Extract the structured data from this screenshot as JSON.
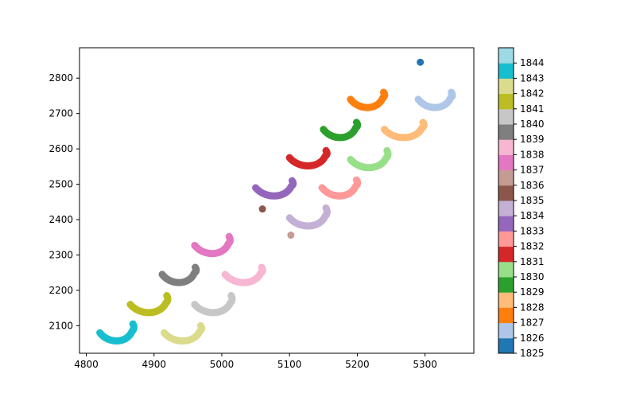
{
  "chart_data": {
    "type": "scatter",
    "title": "",
    "xlabel": "",
    "ylabel": "",
    "xlim": [
      4790,
      5372
    ],
    "ylim": [
      2022,
      2886
    ],
    "xticks": [
      4800,
      4900,
      5000,
      5100,
      5200,
      5300
    ],
    "yticks": [
      2100,
      2200,
      2300,
      2400,
      2500,
      2600,
      2700,
      2800
    ],
    "grid": false,
    "colormap": "tab20",
    "colorbar": {
      "min": 1825,
      "max": 1845,
      "tick_labels": [
        "1825",
        "1826",
        "1827",
        "1828",
        "1829",
        "1830",
        "1831",
        "1832",
        "1833",
        "1834",
        "1835",
        "1836",
        "1837",
        "1838",
        "1839",
        "1840",
        "1841",
        "1842",
        "1843",
        "1844"
      ],
      "colors": [
        "#1f77b4",
        "#aec7e8",
        "#ff7f0e",
        "#ffbb78",
        "#2ca02c",
        "#98df8a",
        "#d62728",
        "#ff9896",
        "#9467bd",
        "#c5b0d5",
        "#8c564b",
        "#c49c94",
        "#e377c2",
        "#f7b6d2",
        "#7f7f7f",
        "#c7c7c7",
        "#bcbd22",
        "#dbdb8d",
        "#17becf",
        "#9edae5"
      ]
    },
    "series": [
      {
        "year": 1825,
        "shape": "dot",
        "cx": 5293,
        "cy": 2845
      },
      {
        "year": 1826,
        "shape": "arc",
        "x_start": 5290,
        "x_end": 5340,
        "y_start": 2740,
        "y_end": 2760
      },
      {
        "year": 1827,
        "shape": "arc",
        "x_start": 5190,
        "x_end": 5240,
        "y_start": 2740,
        "y_end": 2760
      },
      {
        "year": 1828,
        "shape": "arc",
        "x_start": 5240,
        "x_end": 5298,
        "y_start": 2655,
        "y_end": 2675
      },
      {
        "year": 1829,
        "shape": "arc",
        "x_start": 5150,
        "x_end": 5200,
        "y_start": 2655,
        "y_end": 2675
      },
      {
        "year": 1830,
        "shape": "arc",
        "x_start": 5190,
        "x_end": 5245,
        "y_start": 2570,
        "y_end": 2595
      },
      {
        "year": 1831,
        "shape": "arc",
        "x_start": 5100,
        "x_end": 5155,
        "y_start": 2575,
        "y_end": 2595
      },
      {
        "year": 1832,
        "shape": "arc",
        "x_start": 5148,
        "x_end": 5200,
        "y_start": 2490,
        "y_end": 2512
      },
      {
        "year": 1833,
        "shape": "arc",
        "x_start": 5050,
        "x_end": 5105,
        "y_start": 2490,
        "y_end": 2510
      },
      {
        "year": 1834,
        "shape": "arc",
        "x_start": 5100,
        "x_end": 5155,
        "y_start": 2405,
        "y_end": 2433
      },
      {
        "year": 1835,
        "shape": "dot",
        "cx": 5060,
        "cy": 2430
      },
      {
        "year": 1836,
        "shape": "dot",
        "cx": 5102,
        "cy": 2356
      },
      {
        "year": 1837,
        "shape": "arc",
        "x_start": 4960,
        "x_end": 5012,
        "y_start": 2327,
        "y_end": 2352
      },
      {
        "year": 1838,
        "shape": "arc",
        "x_start": 5005,
        "x_end": 5060,
        "y_start": 2245,
        "y_end": 2265
      },
      {
        "year": 1839,
        "shape": "arc",
        "x_start": 4912,
        "x_end": 4962,
        "y_start": 2245,
        "y_end": 2265
      },
      {
        "year": 1840,
        "shape": "arc",
        "x_start": 4960,
        "x_end": 5015,
        "y_start": 2160,
        "y_end": 2185
      },
      {
        "year": 1841,
        "shape": "arc",
        "x_start": 4865,
        "x_end": 4920,
        "y_start": 2160,
        "y_end": 2185
      },
      {
        "year": 1842,
        "shape": "arc",
        "x_start": 4915,
        "x_end": 4970,
        "y_start": 2080,
        "y_end": 2100
      },
      {
        "year": 1843,
        "shape": "arc",
        "x_start": 4820,
        "x_end": 4870,
        "y_start": 2080,
        "y_end": 2105
      }
    ]
  }
}
